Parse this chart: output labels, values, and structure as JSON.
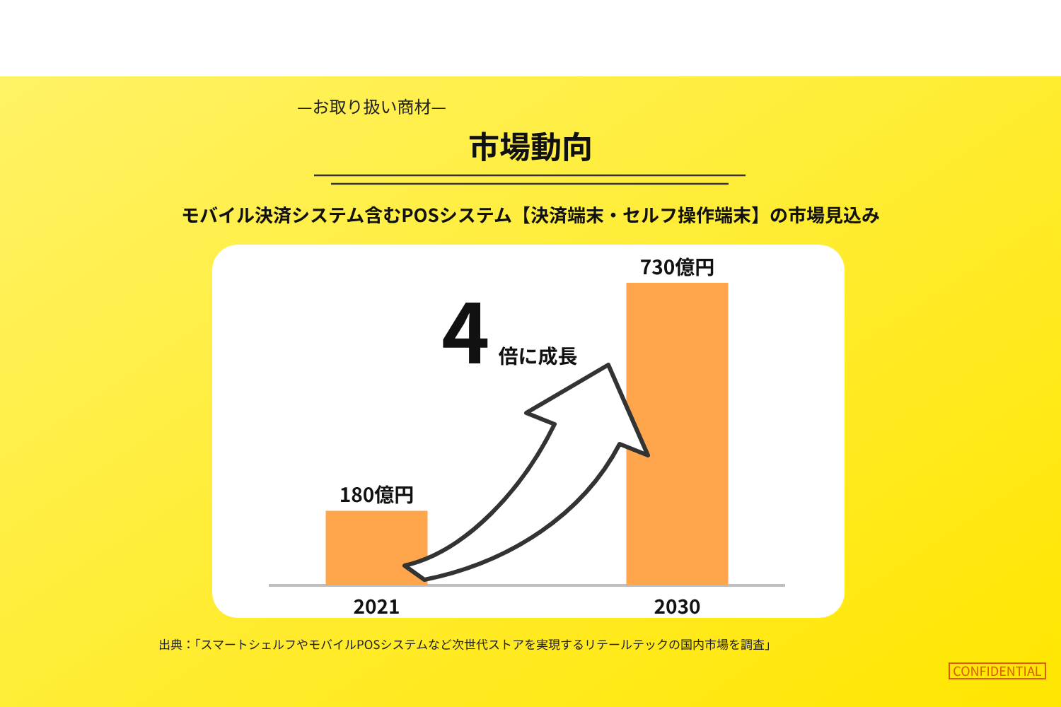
{
  "chart_data": {
    "type": "bar",
    "title": "市場動向",
    "subtitle": "モバイル決済システム含むPOSシステム【決済端末・セルフ操作端末】の市場見込み",
    "categories": [
      "2021",
      "2030"
    ],
    "values": [
      180,
      730
    ],
    "value_labels": [
      "180億円",
      "730億円"
    ],
    "color": "#ffa64d",
    "annotations": [
      "—お取り扱い商材—",
      "4倍に成長",
      "出典：「スマートシェルフやモバイルPOSシステムなど次世代ストアを実現するリテールテックの国内市場を調査」",
      "CONFIDENTIAL"
    ]
  }
}
